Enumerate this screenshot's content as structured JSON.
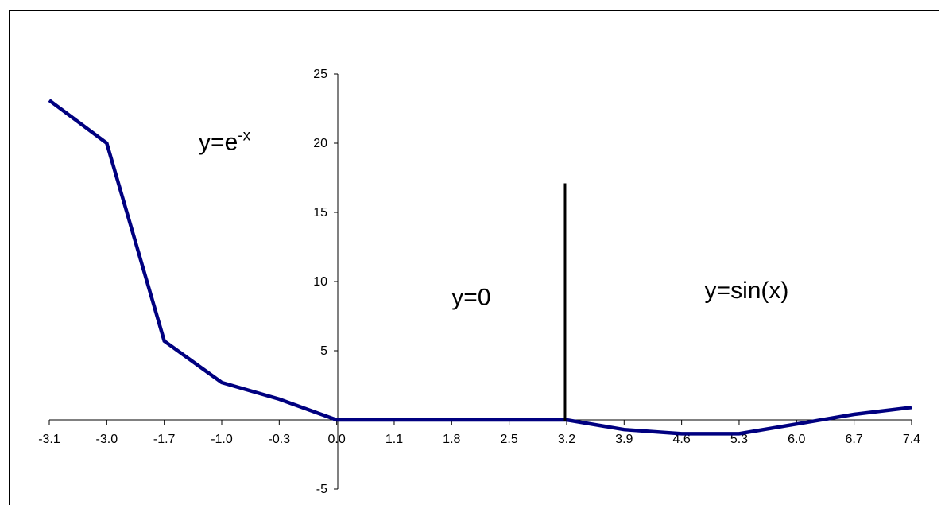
{
  "chart_data": {
    "type": "line",
    "categories": [
      "-3.1",
      "-3.0",
      "-1.7",
      "-1.0",
      "-0.3",
      "0.0",
      "1.1",
      "1.8",
      "2.5",
      "3.2",
      "3.9",
      "4.6",
      "5.3",
      "6.0",
      "6.7",
      "7.4"
    ],
    "series": [
      {
        "color": "#000080",
        "values": [
          23.1,
          20.0,
          5.7,
          2.7,
          1.5,
          0.0,
          0.0,
          0.0,
          0.0,
          0.0,
          -0.7,
          -1.0,
          -1.0,
          -0.3,
          0.4,
          0.9
        ]
      }
    ],
    "ylim": [
      -5,
      25
    ],
    "y_ticks": [
      "-5",
      "5",
      "10",
      "15",
      "20",
      "25"
    ],
    "grid": false,
    "divider": {
      "category_index": 9,
      "y_top": 17.1,
      "color": "#000000"
    },
    "annotations": [
      {
        "base": "y=e",
        "sup": "-x",
        "x_category": 2.6,
        "y": 19.5
      },
      {
        "text": "y=0",
        "x_category": 7.0,
        "y": 8.3
      },
      {
        "text": "y=sin(x)",
        "x_category": 11.4,
        "y": 8.8
      }
    ]
  }
}
